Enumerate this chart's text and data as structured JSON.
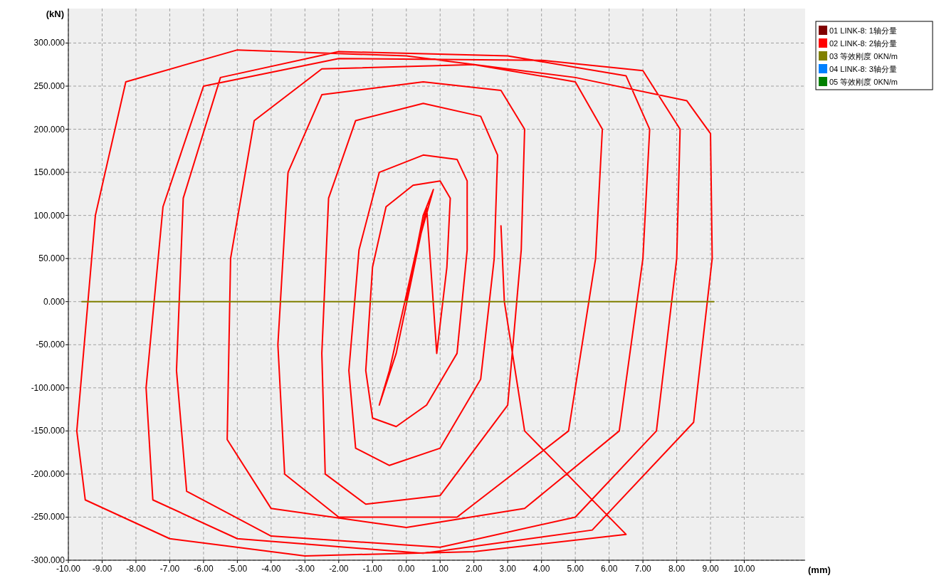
{
  "chart_data": {
    "type": "line",
    "xlabel": "(mm)",
    "ylabel": "(kN)",
    "xlim": [
      -10,
      11.8
    ],
    "ylim": [
      -300,
      340
    ],
    "xticks": [
      {
        "value": -10,
        "label": "-10.00"
      },
      {
        "value": -9,
        "label": "-9.00"
      },
      {
        "value": -8,
        "label": "-8.00"
      },
      {
        "value": -7,
        "label": "-7.00"
      },
      {
        "value": -6,
        "label": "-6.00"
      },
      {
        "value": -5,
        "label": "-5.00"
      },
      {
        "value": -4,
        "label": "-4.00"
      },
      {
        "value": -3,
        "label": "-3.00"
      },
      {
        "value": -2,
        "label": "-2.00"
      },
      {
        "value": -1,
        "label": "-1.00"
      },
      {
        "value": 0,
        "label": "0.00"
      },
      {
        "value": 1,
        "label": "1.00"
      },
      {
        "value": 2,
        "label": "2.00"
      },
      {
        "value": 3,
        "label": "3.00"
      },
      {
        "value": 4,
        "label": "4.00"
      },
      {
        "value": 5,
        "label": "5.00"
      },
      {
        "value": 6,
        "label": "6.00"
      },
      {
        "value": 7,
        "label": "7.00"
      },
      {
        "value": 8,
        "label": "8.00"
      },
      {
        "value": 9,
        "label": "9.00"
      },
      {
        "value": 10,
        "label": "10.00"
      }
    ],
    "yticks": [
      {
        "value": -300,
        "label": "-300.000"
      },
      {
        "value": -250,
        "label": "-250.000"
      },
      {
        "value": -200,
        "label": "-200.000"
      },
      {
        "value": -150,
        "label": "-150.000"
      },
      {
        "value": -100,
        "label": "-100.000"
      },
      {
        "value": -50,
        "label": "-50.000"
      },
      {
        "value": 0,
        "label": "0.000"
      },
      {
        "value": 50,
        "label": "50.000"
      },
      {
        "value": 100,
        "label": "100.000"
      },
      {
        "value": 150,
        "label": "150.000"
      },
      {
        "value": 200,
        "label": "200.000"
      },
      {
        "value": 250,
        "label": "250.000"
      },
      {
        "value": 300,
        "label": "300.000"
      }
    ],
    "grid": true,
    "legend": "top right",
    "marker": "none",
    "line_style": "solid",
    "series": [
      {
        "name": "01 LINK-8: 1轴分量",
        "color": "#800000"
      },
      {
        "name": "02 LINK-8: 2轴分量",
        "color": "#ff0000",
        "x": [
          0,
          0.5,
          0.8,
          0.3,
          -0.5,
          -0.8,
          -0.3,
          0.6,
          0.9,
          1.2,
          1.3,
          1.0,
          0.2,
          -0.6,
          -1.0,
          -1.2,
          -1.0,
          -0.3,
          0.6,
          1.5,
          1.8,
          1.8,
          1.5,
          0.5,
          -0.8,
          -1.4,
          -1.7,
          -1.5,
          -0.5,
          1.0,
          2.2,
          2.6,
          2.7,
          2.2,
          0.5,
          -1.5,
          -2.3,
          -2.5,
          -2.4,
          -1.2,
          1.0,
          3.0,
          3.4,
          3.5,
          2.8,
          0.5,
          -2.5,
          -3.5,
          -3.8,
          -3.6,
          -2.0,
          1.5,
          4.8,
          5.6,
          5.8,
          5.0,
          2.0,
          -2.5,
          -4.5,
          -5.2,
          -5.3,
          -4.0,
          0,
          3.5,
          6.3,
          7.0,
          7.2,
          6.5,
          3.0,
          -2.0,
          -5.5,
          -6.6,
          -6.8,
          -6.5,
          -4.0,
          1.0,
          5.0,
          7.4,
          8.0,
          8.1,
          7.0,
          4.0,
          -2.0,
          -6.0,
          -7.2,
          -7.7,
          -7.5,
          -5.0,
          0.5,
          5.5,
          8.5,
          9.05,
          9.0,
          8.3,
          5.0,
          0,
          -5.0,
          -8.3,
          -9.2,
          -9.75,
          -9.5,
          -7.0,
          -3.0,
          2.0,
          6.5,
          3.5,
          2.9,
          2.8
        ],
        "values": [
          0,
          100,
          130,
          60,
          -80,
          -120,
          -60,
          110,
          -60,
          40,
          120,
          140,
          135,
          110,
          40,
          -80,
          -135,
          -145,
          -120,
          -60,
          60,
          140,
          165,
          170,
          150,
          60,
          -80,
          -170,
          -190,
          -170,
          -90,
          50,
          170,
          215,
          230,
          210,
          120,
          -60,
          -200,
          -235,
          -225,
          -120,
          60,
          200,
          245,
          255,
          240,
          150,
          -50,
          -200,
          -250,
          -250,
          -150,
          50,
          200,
          255,
          275,
          270,
          210,
          50,
          -160,
          -240,
          -262,
          -240,
          -150,
          50,
          200,
          262,
          285,
          290,
          260,
          120,
          -80,
          -220,
          -272,
          -285,
          -250,
          -150,
          50,
          200,
          268,
          280,
          282,
          250,
          110,
          -100,
          -230,
          -275,
          -292,
          -265,
          -140,
          50,
          195,
          233,
          260,
          285,
          292,
          255,
          100,
          -150,
          -230,
          -275,
          -295,
          -290,
          -270,
          -150,
          0,
          88
        ]
      },
      {
        "name": "03 等效刚度 0KN/m",
        "color": "#808000",
        "x": [
          -9.6,
          9.1
        ],
        "values": [
          0,
          0
        ]
      },
      {
        "name": "04 LINK-8: 3轴分量",
        "color": "#0080ff"
      },
      {
        "name": "05 等效刚度 0KN/m",
        "color": "#008000"
      }
    ]
  }
}
